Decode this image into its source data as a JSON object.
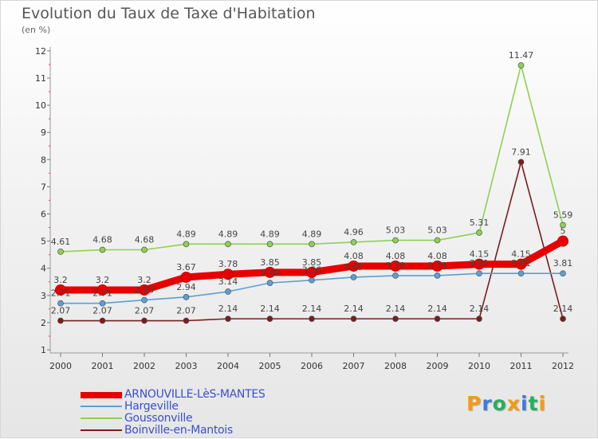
{
  "title": "Evolution du Taux de Taxe d'Habitation",
  "subtitle": "(en %)",
  "logo": {
    "text": "Proxiti",
    "letters": [
      {
        "ch": "P",
        "color": "#f39c12"
      },
      {
        "ch": "r",
        "color": "#3b7dd8"
      },
      {
        "ch": "o",
        "color": "#27ae60"
      },
      {
        "ch": "x",
        "color": "#f39c12"
      },
      {
        "ch": "i",
        "color": "#3b7dd8"
      },
      {
        "ch": "t",
        "color": "#27ae60"
      },
      {
        "ch": "i",
        "color": "#f39c12"
      }
    ]
  },
  "chart_data": {
    "type": "line",
    "title": "Evolution du Taux de Taxe d'Habitation",
    "subtitle": "(en %)",
    "xlabel": "",
    "ylabel": "",
    "categories": [
      "2000",
      "2001",
      "2002",
      "2003",
      "2004",
      "2005",
      "2006",
      "2007",
      "2008",
      "2009",
      "2010",
      "2011",
      "2012"
    ],
    "y_ticks": [
      1,
      2,
      3,
      4,
      5,
      6,
      7,
      8,
      9,
      10,
      11,
      12
    ],
    "ylim": [
      1,
      12
    ],
    "grid": false,
    "legend_position": "bottom-left",
    "series": [
      {
        "name": "ARNOUVILLE-LèS-MANTES",
        "color": "#e80000",
        "values": [
          3.2,
          3.2,
          3.2,
          3.67,
          3.78,
          3.85,
          3.85,
          4.08,
          4.08,
          4.08,
          4.15,
          4.15,
          5
        ],
        "labels": [
          "3.2",
          "3.2",
          "3.2",
          "3.67",
          "3.78",
          "3.85",
          "3.85",
          "4.08",
          "4.08",
          "4.08",
          "4.15",
          "4.15",
          "5"
        ]
      },
      {
        "name": "Hargeville",
        "color": "#5b9fd6",
        "values": [
          2.71,
          2.71,
          2.83,
          2.94,
          3.14,
          3.46,
          3.56,
          3.67,
          3.73,
          3.73,
          3.81,
          3.81,
          3.81
        ],
        "labels": [
          "2.71",
          "2.71",
          "2.83",
          "2.94",
          "3.14",
          "3.46",
          "3.56",
          "3.67",
          "3.73",
          "3.73",
          "3.81",
          "3.81",
          "3.81"
        ]
      },
      {
        "name": "Goussonville",
        "color": "#8fd14f",
        "values": [
          4.61,
          4.68,
          4.68,
          4.89,
          4.89,
          4.89,
          4.89,
          4.96,
          5.03,
          5.03,
          5.31,
          11.47,
          5.59
        ],
        "labels": [
          "4.61",
          "4.68",
          "4.68",
          "4.89",
          "4.89",
          "4.89",
          "4.89",
          "4.96",
          "5.03",
          "5.03",
          "5.31",
          "11.47",
          "5.59"
        ]
      },
      {
        "name": "Boinville-en-Mantois",
        "color": "#7a1c1c",
        "values": [
          2.07,
          2.07,
          2.07,
          2.07,
          2.14,
          2.14,
          2.14,
          2.14,
          2.14,
          2.14,
          2.14,
          7.91,
          2.14
        ],
        "labels": [
          "2.07",
          "2.07",
          "2.07",
          "2.07",
          "2.14",
          "2.14",
          "2.14",
          "2.14",
          "2.14",
          "2.14",
          "2.14",
          "7.91",
          "2.14"
        ]
      }
    ]
  }
}
